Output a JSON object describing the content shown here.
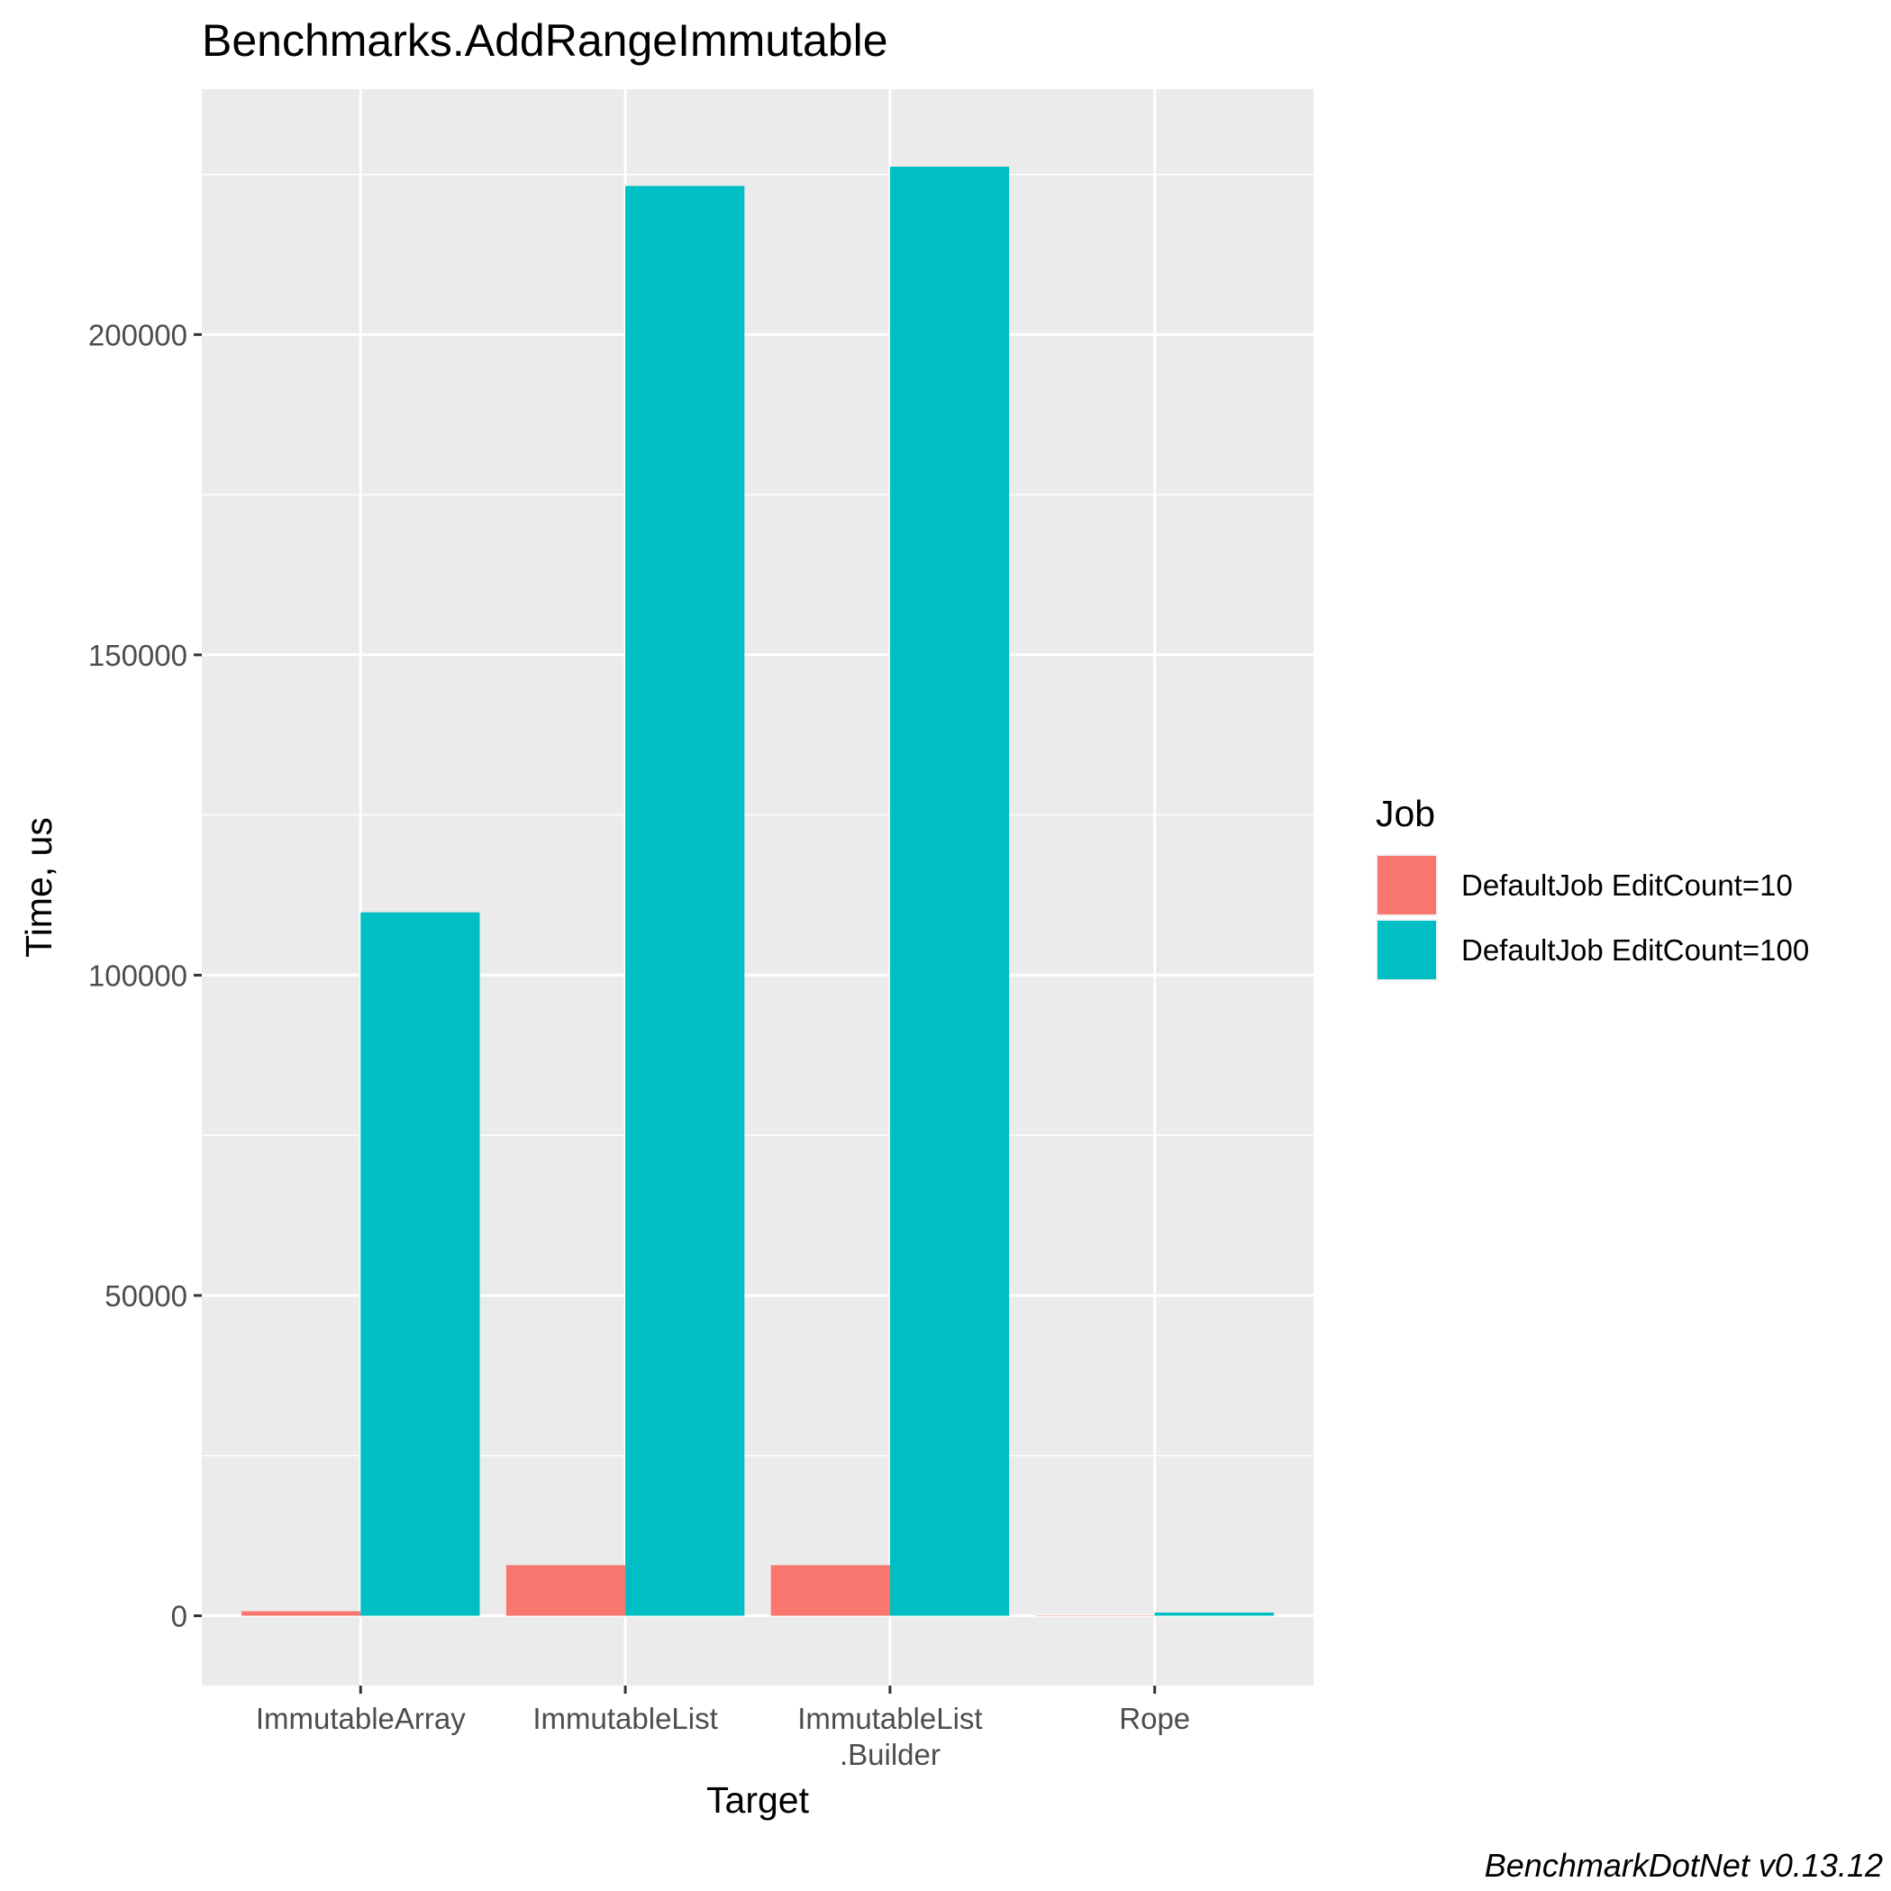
{
  "chart_data": {
    "type": "bar",
    "title": "Benchmarks.AddRangeImmutable",
    "xlabel": "Target",
    "ylabel": "Time, us",
    "categories": [
      [
        "ImmutableArray"
      ],
      [
        "ImmutableList"
      ],
      [
        "ImmutableList",
        ".Builder"
      ],
      [
        "Rope"
      ]
    ],
    "series": [
      {
        "name": "DefaultJob EditCount=10",
        "color": "#F8766D",
        "values": [
          700,
          7900,
          7900,
          50
        ]
      },
      {
        "name": "DefaultJob EditCount=100",
        "color": "#00BFC4",
        "values": [
          109800,
          223200,
          226200,
          500
        ]
      }
    ],
    "ylim": [
      -10900,
      238300
    ],
    "yticks": [
      0,
      50000,
      100000,
      150000,
      200000
    ],
    "ytick_labels": [
      "0",
      "50000",
      "100000",
      "150000",
      "200000"
    ],
    "grid": true,
    "legend": {
      "title": "Job",
      "position": "right"
    },
    "caption": "BenchmarkDotNet v0.13.12"
  }
}
